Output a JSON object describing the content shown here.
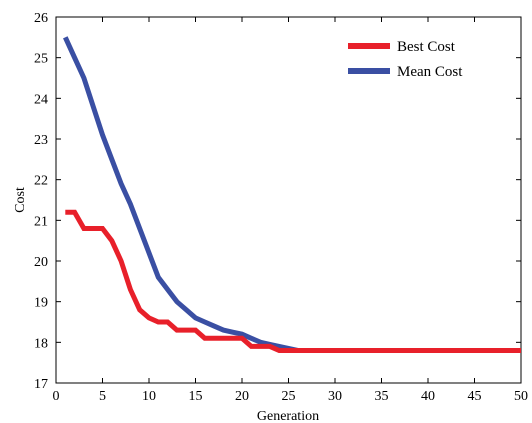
{
  "chart_data": {
    "type": "line",
    "title": "",
    "xlabel": "Generation",
    "ylabel": "Cost",
    "xlim": [
      0,
      50
    ],
    "ylim": [
      17,
      26
    ],
    "xticks": [
      "0",
      "5",
      "10",
      "15",
      "20",
      "25",
      "30",
      "35",
      "40",
      "45",
      "50"
    ],
    "yticks": [
      "17",
      "18",
      "19",
      "20",
      "21",
      "22",
      "23",
      "24",
      "25",
      "26"
    ],
    "grid": false,
    "legend_position": "top-right",
    "series": [
      {
        "name": "Best Cost",
        "color": "#e8202a",
        "points": [
          [
            1,
            21.2
          ],
          [
            2,
            21.2
          ],
          [
            3,
            20.8
          ],
          [
            4,
            20.8
          ],
          [
            5,
            20.8
          ],
          [
            6,
            20.5
          ],
          [
            7,
            20.0
          ],
          [
            8,
            19.3
          ],
          [
            9,
            18.8
          ],
          [
            10,
            18.6
          ],
          [
            11,
            18.5
          ],
          [
            12,
            18.5
          ],
          [
            13,
            18.3
          ],
          [
            14,
            18.3
          ],
          [
            15,
            18.3
          ],
          [
            16,
            18.1
          ],
          [
            17,
            18.1
          ],
          [
            18,
            18.1
          ],
          [
            19,
            18.1
          ],
          [
            20,
            18.1
          ],
          [
            21,
            17.9
          ],
          [
            22,
            17.9
          ],
          [
            23,
            17.9
          ],
          [
            24,
            17.8
          ],
          [
            25,
            17.8
          ],
          [
            26,
            17.8
          ],
          [
            27,
            17.8
          ],
          [
            28,
            17.8
          ],
          [
            29,
            17.8
          ],
          [
            30,
            17.8
          ],
          [
            35,
            17.8
          ],
          [
            40,
            17.8
          ],
          [
            45,
            17.8
          ],
          [
            50,
            17.8
          ]
        ]
      },
      {
        "name": "Mean Cost",
        "color": "#3a4fa3",
        "points": [
          [
            1,
            25.5
          ],
          [
            2,
            25.0
          ],
          [
            3,
            24.5
          ],
          [
            4,
            23.8
          ],
          [
            5,
            23.1
          ],
          [
            6,
            22.5
          ],
          [
            7,
            21.9
          ],
          [
            8,
            21.4
          ],
          [
            9,
            20.8
          ],
          [
            10,
            20.2
          ],
          [
            11,
            19.6
          ],
          [
            12,
            19.3
          ],
          [
            13,
            19.0
          ],
          [
            14,
            18.8
          ],
          [
            15,
            18.6
          ],
          [
            16,
            18.5
          ],
          [
            17,
            18.4
          ],
          [
            18,
            18.3
          ],
          [
            19,
            18.25
          ],
          [
            20,
            18.2
          ],
          [
            21,
            18.1
          ],
          [
            22,
            18.0
          ],
          [
            23,
            17.95
          ],
          [
            24,
            17.9
          ],
          [
            25,
            17.85
          ],
          [
            26,
            17.8
          ],
          [
            27,
            17.8
          ],
          [
            28,
            17.8
          ],
          [
            29,
            17.8
          ],
          [
            30,
            17.8
          ],
          [
            35,
            17.8
          ],
          [
            40,
            17.8
          ],
          [
            45,
            17.8
          ],
          [
            50,
            17.8
          ]
        ]
      }
    ]
  }
}
